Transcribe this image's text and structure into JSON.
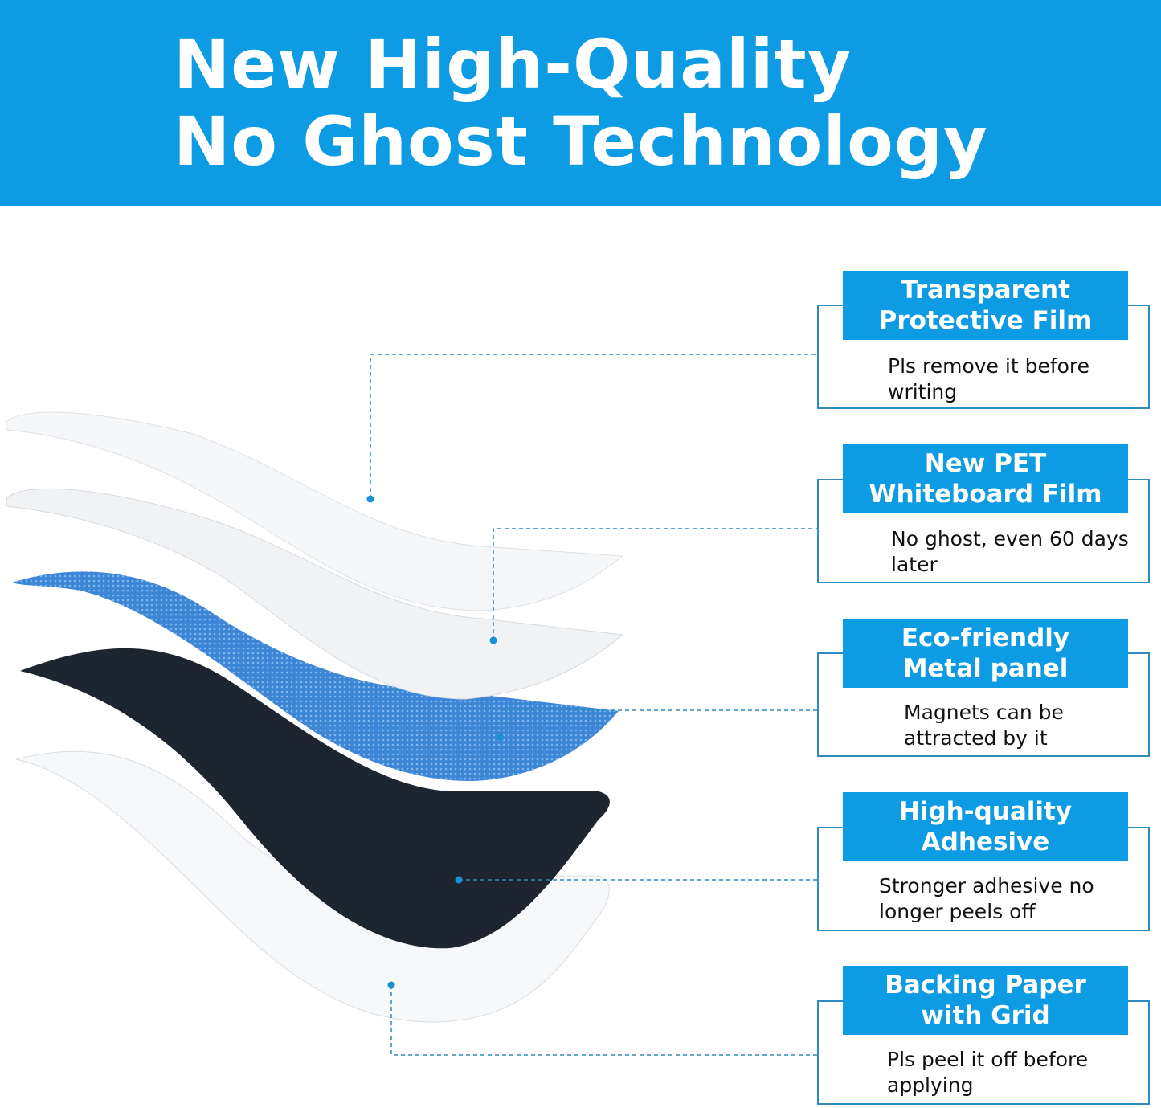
{
  "header": {
    "line1": "New High-Quality",
    "line2": "No Ghost Technology",
    "background": "#0d9be3"
  },
  "layers": [
    {
      "title_line1": "Transparent",
      "title_line2": "Protective Film",
      "desc": "Pls remove it before writing"
    },
    {
      "title_line1": "New PET",
      "title_line2": "Whiteboard Film",
      "desc": "No ghost, even 60 days later"
    },
    {
      "title_line1": "Eco-friendly",
      "title_line2": "Metal panel",
      "desc": "Magnets can be attracted by it"
    },
    {
      "title_line1": "High-quality",
      "title_line2": "Adhesive",
      "desc": "Stronger adhesive no longer peels off"
    },
    {
      "title_line1": "Backing Paper",
      "title_line2": "with Grid",
      "desc": "Pls peel it off before applying"
    }
  ],
  "colors": {
    "accent": "#0d9be3",
    "border": "#2d8bc0",
    "metal": "#3a7fd0",
    "adhesive": "#1d2530"
  }
}
